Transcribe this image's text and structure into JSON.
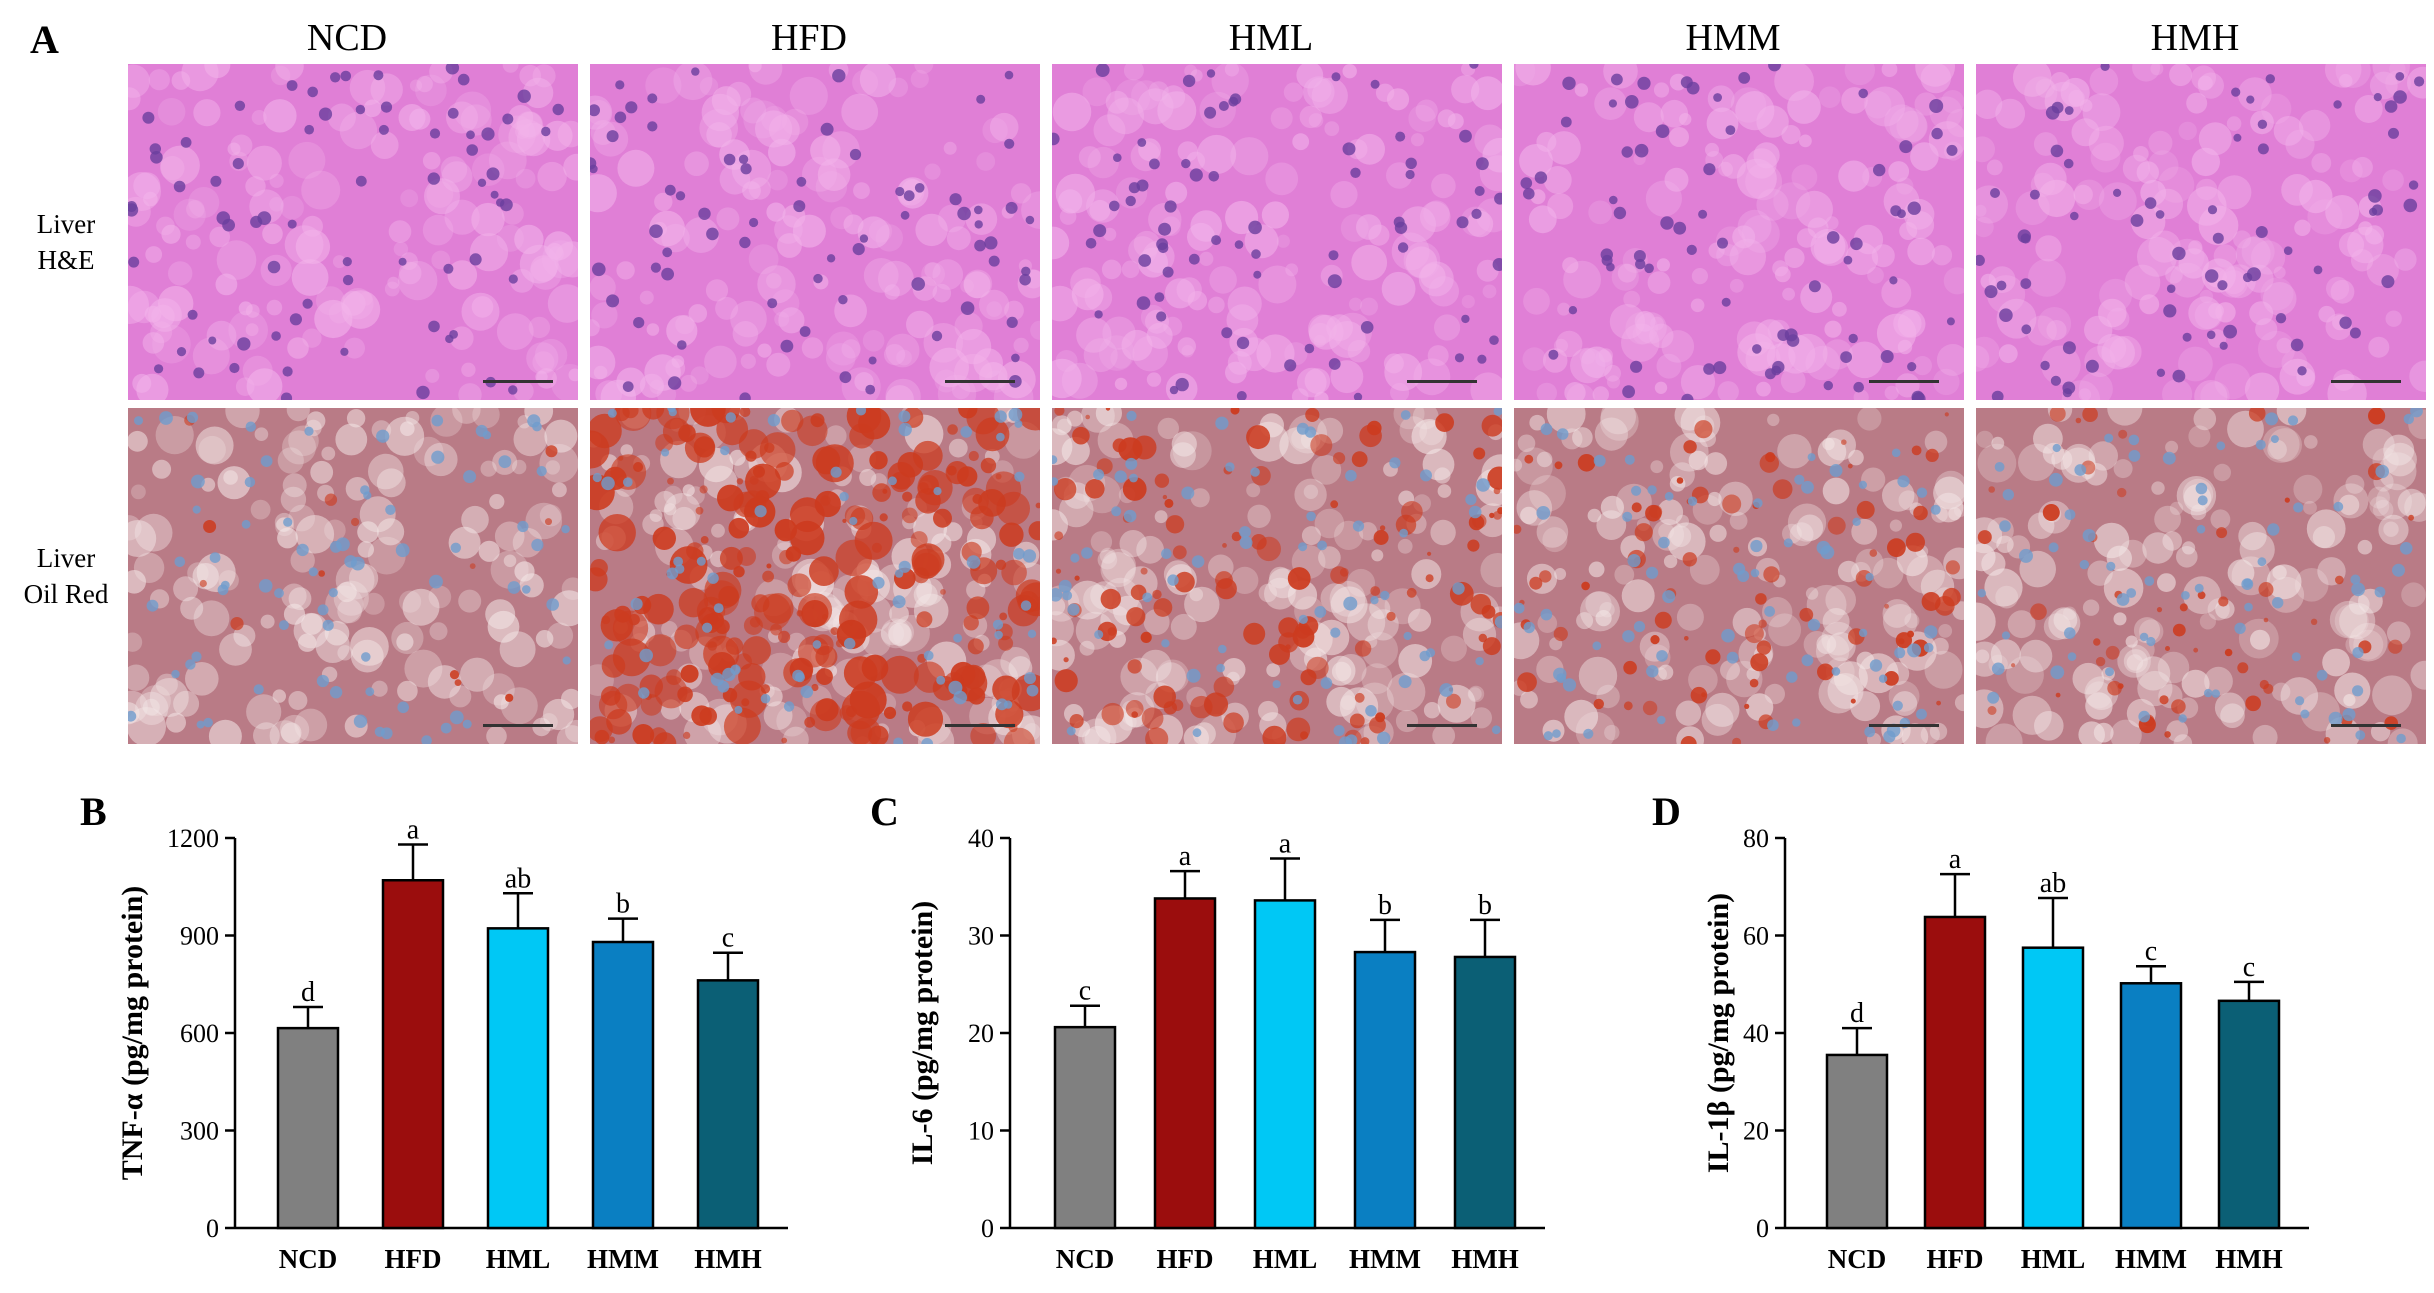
{
  "panel_a": {
    "letter": "A",
    "columns": [
      "NCD",
      "HFD",
      "HML",
      "HMM",
      "HMH"
    ],
    "rows": [
      {
        "line1": "Liver",
        "line2": "H&E",
        "stain": "he"
      },
      {
        "line1": "Liver",
        "line2": "Oil Red",
        "stain": "oilred"
      }
    ],
    "colors": {
      "he_background": "#e07fd6",
      "he_nuclei": "#6a3f9e",
      "oilred_background": "#b97b86",
      "oilred_nuclei": "#6f9ccd",
      "lipid": "#cc3b1f"
    },
    "lipid_level": [
      0.05,
      0.95,
      0.45,
      0.3,
      0.2
    ]
  },
  "chart_data": [
    {
      "type": "bar",
      "panel": "B",
      "ylabel": "TNF-α (pg/mg protein)",
      "categories": [
        "NCD",
        "HFD",
        "HML",
        "HMM",
        "HMH"
      ],
      "values": [
        615,
        1070,
        922,
        880,
        762
      ],
      "errors": [
        65,
        110,
        108,
        72,
        85
      ],
      "letters": [
        "d",
        "a",
        "ab",
        "b",
        "c"
      ],
      "ylim": [
        0,
        1200
      ],
      "yticks": [
        "0",
        "300",
        "600",
        "900",
        "1200"
      ],
      "colors": [
        "#808080",
        "#9b0d0d",
        "#00c8f5",
        "#0a7fc2",
        "#0b5f75"
      ]
    },
    {
      "type": "bar",
      "panel": "C",
      "ylabel": "IL-6 (pg/mg protein)",
      "categories": [
        "NCD",
        "HFD",
        "HML",
        "HMM",
        "HMH"
      ],
      "values": [
        20.6,
        33.8,
        33.6,
        28.3,
        27.8
      ],
      "errors": [
        2.2,
        2.8,
        4.3,
        3.3,
        3.8
      ],
      "letters": [
        "c",
        "a",
        "a",
        "b",
        "b"
      ],
      "ylim": [
        0,
        40
      ],
      "yticks": [
        "0",
        "10",
        "20",
        "30",
        "40"
      ],
      "colors": [
        "#808080",
        "#9b0d0d",
        "#00c8f5",
        "#0a7fc2",
        "#0b5f75"
      ]
    },
    {
      "type": "bar",
      "panel": "D",
      "ylabel": "IL-1β (pg/mg protein)",
      "categories": [
        "NCD",
        "HFD",
        "HML",
        "HMM",
        "HMH"
      ],
      "values": [
        35.5,
        63.8,
        57.5,
        50.2,
        46.6
      ],
      "errors": [
        5.5,
        8.8,
        10.2,
        3.5,
        3.9
      ],
      "letters": [
        "d",
        "a",
        "ab",
        "c",
        "c"
      ],
      "ylim": [
        0,
        80
      ],
      "yticks": [
        "0",
        "20",
        "40",
        "60",
        "80"
      ],
      "colors": [
        "#808080",
        "#9b0d0d",
        "#00c8f5",
        "#0a7fc2",
        "#0b5f75"
      ]
    }
  ]
}
